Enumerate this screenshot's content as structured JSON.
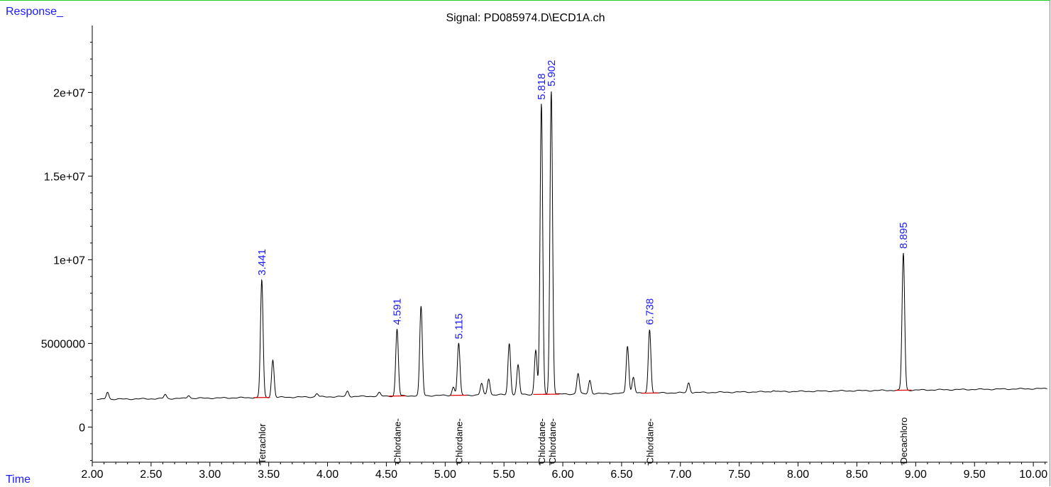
{
  "chart_data": {
    "type": "line",
    "title": "Signal: PD085974.D\\ECD1A.ch",
    "ylabel": "Response_",
    "xlabel": "Time",
    "xlim": [
      2.0,
      10.12
    ],
    "ylim": [
      -2100000,
      24000000
    ],
    "x_ticks": [
      "2.00",
      "2.50",
      "3.00",
      "3.50",
      "4.00",
      "4.50",
      "5.00",
      "5.50",
      "6.00",
      "6.50",
      "7.00",
      "7.50",
      "8.00",
      "8.50",
      "9.00",
      "9.50",
      "10.00"
    ],
    "y_ticks": [
      "0",
      "5000000",
      "1e+07",
      "1.5e+07",
      "2e+07"
    ],
    "colors": {
      "trace": "#000000",
      "baseline": "#dd0000",
      "peak_label": "#1a1aff",
      "axis": "#000000",
      "frame": "#22cc22"
    },
    "baseline_start": 1650000,
    "baseline_end": 2300000,
    "labeled_peaks": [
      {
        "rt": 3.441,
        "height": 8800000,
        "label": "3.441",
        "compound": "Tetrachlor"
      },
      {
        "rt": 4.591,
        "height": 5850000,
        "label": "4.591",
        "compound": "Chlordane-"
      },
      {
        "rt": 5.115,
        "height": 5000000,
        "label": "5.115",
        "compound": "Chlordane-"
      },
      {
        "rt": 5.818,
        "height": 19300000,
        "label": "5.818",
        "compound": "Chlordane-"
      },
      {
        "rt": 5.902,
        "height": 20100000,
        "label": "5.902",
        "compound": "Chlordane-"
      },
      {
        "rt": 6.738,
        "height": 5850000,
        "label": "6.738",
        "compound": "Chlordane-"
      },
      {
        "rt": 8.895,
        "height": 10400000,
        "label": "8.895",
        "compound": "Decachloro"
      }
    ],
    "minor_peaks": [
      {
        "rt": 2.13,
        "height": 2100000
      },
      {
        "rt": 2.62,
        "height": 1950000
      },
      {
        "rt": 2.82,
        "height": 1900000
      },
      {
        "rt": 3.535,
        "height": 4000000
      },
      {
        "rt": 3.91,
        "height": 2000000
      },
      {
        "rt": 4.17,
        "height": 2150000
      },
      {
        "rt": 4.44,
        "height": 2050000
      },
      {
        "rt": 4.795,
        "height": 7200000
      },
      {
        "rt": 5.07,
        "height": 2400000
      },
      {
        "rt": 5.31,
        "height": 2600000
      },
      {
        "rt": 5.37,
        "height": 2900000
      },
      {
        "rt": 5.545,
        "height": 5000000
      },
      {
        "rt": 5.62,
        "height": 3700000
      },
      {
        "rt": 5.77,
        "height": 4600000
      },
      {
        "rt": 6.13,
        "height": 3200000
      },
      {
        "rt": 6.23,
        "height": 2800000
      },
      {
        "rt": 6.55,
        "height": 4850000
      },
      {
        "rt": 6.6,
        "height": 3000000
      },
      {
        "rt": 7.07,
        "height": 2650000
      },
      {
        "rt": 7.79,
        "height": 2200000
      }
    ]
  }
}
